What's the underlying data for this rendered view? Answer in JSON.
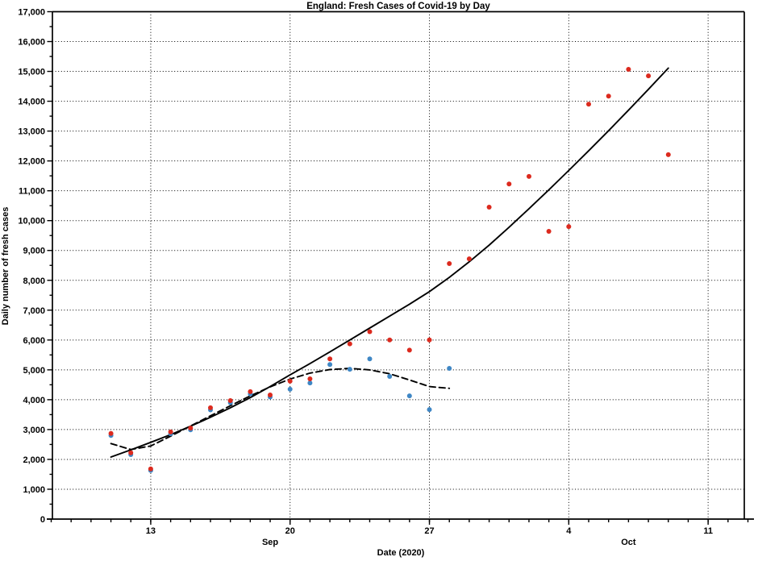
{
  "chart_data": {
    "type": "scatter",
    "title": "England: Fresh Cases of Covid-19 by Day",
    "xlabel": "Date (2020)",
    "ylabel": "Daily number of fresh cases",
    "ylim": [
      0,
      17000
    ],
    "y_tick_step": 1000,
    "y_minor_tick_step": 500,
    "y_tick_labels": [
      "0",
      "1,000",
      "2,000",
      "3,000",
      "4,000",
      "5,000",
      "6,000",
      "7,000",
      "8,000",
      "9,000",
      "10,000",
      "11,000",
      "12,000",
      "13,000",
      "14,000",
      "15,000",
      "16,000",
      "17,000"
    ],
    "x_range": [
      "Sep 8",
      "Oct 13"
    ],
    "x_major_ticks": [
      {
        "date": "Sep 13",
        "label": "13"
      },
      {
        "date": "Sep 20",
        "label": "20"
      },
      {
        "date": "Sep 27",
        "label": "27"
      },
      {
        "date": "Oct 4",
        "label": "4"
      },
      {
        "date": "Oct 11",
        "label": "11"
      }
    ],
    "x_month_labels": [
      {
        "label": "Sep",
        "center_date": "Sep 19"
      },
      {
        "label": "Oct",
        "center_date": "Oct 7"
      }
    ],
    "grid": true,
    "legend_position": "none",
    "colors": {
      "red_points": "#dc2a1e",
      "blue_points": "#3f87c5",
      "curves": "#000000"
    },
    "series": [
      {
        "name": "solid-trend-curve",
        "type": "line",
        "line_style": "solid",
        "color_key": "curves",
        "points": [
          [
            "Sep 11",
            2080
          ],
          [
            "Sep 12",
            2320
          ],
          [
            "Sep 13",
            2570
          ],
          [
            "Sep 14",
            2830
          ],
          [
            "Sep 15",
            3110
          ],
          [
            "Sep 16",
            3410
          ],
          [
            "Sep 17",
            3730
          ],
          [
            "Sep 18",
            4070
          ],
          [
            "Sep 19",
            4440
          ],
          [
            "Sep 20",
            4830
          ],
          [
            "Sep 21",
            5210
          ],
          [
            "Sep 22",
            5600
          ],
          [
            "Sep 23",
            6000
          ],
          [
            "Sep 24",
            6400
          ],
          [
            "Sep 25",
            6800
          ],
          [
            "Sep 26",
            7200
          ],
          [
            "Sep 27",
            7620
          ],
          [
            "Sep 28",
            8100
          ],
          [
            "Sep 29",
            8620
          ],
          [
            "Sep 30",
            9180
          ],
          [
            "Oct 1",
            9780
          ],
          [
            "Oct 2",
            10400
          ],
          [
            "Oct 3",
            11030
          ],
          [
            "Oct 4",
            11680
          ],
          [
            "Oct 5",
            12340
          ],
          [
            "Oct 6",
            13010
          ],
          [
            "Oct 7",
            13700
          ],
          [
            "Oct 8",
            14400
          ],
          [
            "Oct 9",
            15110
          ]
        ]
      },
      {
        "name": "dashed-trend-curve",
        "type": "line",
        "line_style": "dashed",
        "color_key": "curves",
        "points": [
          [
            "Sep 11",
            2530
          ],
          [
            "Sep 12",
            2330
          ],
          [
            "Sep 13",
            2450
          ],
          [
            "Sep 14",
            2780
          ],
          [
            "Sep 15",
            3120
          ],
          [
            "Sep 16",
            3460
          ],
          [
            "Sep 17",
            3800
          ],
          [
            "Sep 18",
            4130
          ],
          [
            "Sep 19",
            4430
          ],
          [
            "Sep 20",
            4690
          ],
          [
            "Sep 21",
            4890
          ],
          [
            "Sep 22",
            5010
          ],
          [
            "Sep 23",
            5050
          ],
          [
            "Sep 24",
            5000
          ],
          [
            "Sep 25",
            4870
          ],
          [
            "Sep 26",
            4660
          ],
          [
            "Sep 27",
            4440
          ],
          [
            "Sep 28",
            4380
          ]
        ]
      },
      {
        "name": "blue-daily-cases",
        "type": "scatter",
        "color_key": "blue_points",
        "points": [
          [
            "Sep 11",
            2800
          ],
          [
            "Sep 12",
            2160
          ],
          [
            "Sep 13",
            1630
          ],
          [
            "Sep 14",
            2860
          ],
          [
            "Sep 15",
            2990
          ],
          [
            "Sep 16",
            3660
          ],
          [
            "Sep 17",
            3900
          ],
          [
            "Sep 18",
            4190
          ],
          [
            "Sep 19",
            4090
          ],
          [
            "Sep 20",
            4350
          ],
          [
            "Sep 21",
            4560
          ],
          [
            "Sep 22",
            5180
          ],
          [
            "Sep 23",
            5020
          ],
          [
            "Sep 24",
            5370
          ],
          [
            "Sep 25",
            4780
          ],
          [
            "Sep 26",
            4130
          ],
          [
            "Sep 27",
            3670
          ],
          [
            "Sep 28",
            5050
          ]
        ]
      },
      {
        "name": "red-daily-cases",
        "type": "scatter",
        "color_key": "red_points",
        "points": [
          [
            "Sep 11",
            2870
          ],
          [
            "Sep 12",
            2220
          ],
          [
            "Sep 13",
            1680
          ],
          [
            "Sep 14",
            2920
          ],
          [
            "Sep 15",
            3050
          ],
          [
            "Sep 16",
            3730
          ],
          [
            "Sep 17",
            3970
          ],
          [
            "Sep 18",
            4270
          ],
          [
            "Sep 19",
            4160
          ],
          [
            "Sep 20",
            4620
          ],
          [
            "Sep 21",
            4700
          ],
          [
            "Sep 22",
            5370
          ],
          [
            "Sep 23",
            5870
          ],
          [
            "Sep 24",
            6280
          ],
          [
            "Sep 25",
            6000
          ],
          [
            "Sep 26",
            5660
          ],
          [
            "Sep 27",
            6000
          ],
          [
            "Sep 28",
            8560
          ],
          [
            "Sep 29",
            8720
          ],
          [
            "Sep 30",
            10450
          ],
          [
            "Oct 1",
            11230
          ],
          [
            "Oct 2",
            11480
          ],
          [
            "Oct 3",
            9640
          ],
          [
            "Oct 4",
            9800
          ],
          [
            "Oct 5",
            13900
          ],
          [
            "Oct 6",
            14170
          ],
          [
            "Oct 7",
            15070
          ],
          [
            "Oct 8",
            14850
          ],
          [
            "Oct 9",
            12210
          ]
        ]
      }
    ]
  }
}
